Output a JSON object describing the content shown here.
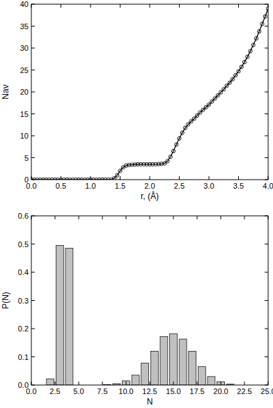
{
  "chart_data": [
    {
      "type": "line",
      "x_label": "r, (Å)",
      "y_label": "Nav",
      "marker": "circle",
      "line_style": "solid",
      "color": "#000000",
      "xlim": [
        0,
        4
      ],
      "ylim": [
        0,
        40
      ],
      "xticks": [
        {
          "value": 0,
          "label": "0.0"
        },
        {
          "value": 0.5,
          "label": "0.5"
        },
        {
          "value": 1,
          "label": "1.0"
        },
        {
          "value": 1.5,
          "label": "1.5"
        },
        {
          "value": 2,
          "label": "2.0"
        },
        {
          "value": 2.5,
          "label": "2.5"
        },
        {
          "value": 3,
          "label": "3.0"
        },
        {
          "value": 3.5,
          "label": "3.5"
        },
        {
          "value": 4,
          "label": "4.0"
        }
      ],
      "yticks": [
        0,
        5,
        10,
        15,
        20,
        25,
        30,
        35,
        40
      ],
      "x": [
        0,
        0.05,
        0.1,
        0.15,
        0.2,
        0.25,
        0.3,
        0.35,
        0.4,
        0.45,
        0.5,
        0.55,
        0.6,
        0.65,
        0.7,
        0.75,
        0.8,
        0.85,
        0.9,
        0.95,
        1,
        1.05,
        1.1,
        1.15,
        1.2,
        1.25,
        1.3,
        1.35,
        1.4,
        1.45,
        1.5,
        1.55,
        1.6,
        1.65,
        1.7,
        1.75,
        1.8,
        1.85,
        1.9,
        1.95,
        2,
        2.05,
        2.1,
        2.15,
        2.2,
        2.25,
        2.3,
        2.35,
        2.4,
        2.45,
        2.5,
        2.55,
        2.6,
        2.65,
        2.7,
        2.75,
        2.8,
        2.85,
        2.9,
        2.95,
        3,
        3.05,
        3.1,
        3.15,
        3.2,
        3.25,
        3.3,
        3.35,
        3.4,
        3.45,
        3.5,
        3.55,
        3.6,
        3.65,
        3.7,
        3.75,
        3.8,
        3.85,
        3.9,
        3.95,
        4
      ],
      "values": [
        0,
        0,
        0,
        0,
        0,
        0,
        0,
        0,
        0,
        0,
        0,
        0,
        0,
        0,
        0,
        0,
        0,
        0,
        0,
        0,
        0,
        0,
        0,
        0,
        0,
        0,
        0,
        0,
        0.3,
        1.0,
        2.0,
        2.8,
        3.2,
        3.35,
        3.4,
        3.45,
        3.5,
        3.5,
        3.5,
        3.5,
        3.5,
        3.5,
        3.5,
        3.55,
        3.6,
        3.7,
        4.2,
        5.2,
        6.5,
        8.0,
        9.4,
        10.7,
        11.8,
        12.6,
        13.3,
        13.9,
        14.6,
        15.3,
        15.9,
        16.5,
        17.1,
        17.8,
        18.5,
        19.2,
        19.9,
        20.6,
        21.4,
        22.1,
        22.9,
        23.8,
        24.7,
        25.7,
        26.8,
        28.0,
        29.3,
        30.7,
        32.2,
        33.8,
        35.5,
        37.2,
        39.0
      ]
    },
    {
      "type": "bar",
      "x_label": "N",
      "y_label": "P(N)",
      "color": "#c0c0c0",
      "xlim": [
        0,
        25
      ],
      "ylim": [
        0,
        0.6
      ],
      "xticks": [
        {
          "value": 0,
          "label": "0.0"
        },
        {
          "value": 2.5,
          "label": "2.5"
        },
        {
          "value": 5,
          "label": "5.0"
        },
        {
          "value": 7.5,
          "label": "7.5"
        },
        {
          "value": 10,
          "label": "10.0"
        },
        {
          "value": 12.5,
          "label": "12.5"
        },
        {
          "value": 15,
          "label": "15.0"
        },
        {
          "value": 17.5,
          "label": "17.5"
        },
        {
          "value": 20,
          "label": "20.0"
        },
        {
          "value": 22.5,
          "label": "22.5"
        },
        {
          "value": 25,
          "label": "25.0"
        }
      ],
      "yticks": [
        {
          "value": 0,
          "label": "0.0"
        },
        0.1,
        0.2,
        0.3,
        0.4,
        0.5,
        0.6
      ],
      "x": [
        2,
        3,
        4,
        8,
        9,
        10,
        11,
        12,
        13,
        14,
        15,
        16,
        17,
        18,
        19,
        20,
        21
      ],
      "values": [
        0.022,
        0.495,
        0.485,
        0.001,
        0.005,
        0.015,
        0.035,
        0.078,
        0.12,
        0.172,
        0.182,
        0.163,
        0.12,
        0.065,
        0.03,
        0.012,
        0.003
      ]
    }
  ]
}
